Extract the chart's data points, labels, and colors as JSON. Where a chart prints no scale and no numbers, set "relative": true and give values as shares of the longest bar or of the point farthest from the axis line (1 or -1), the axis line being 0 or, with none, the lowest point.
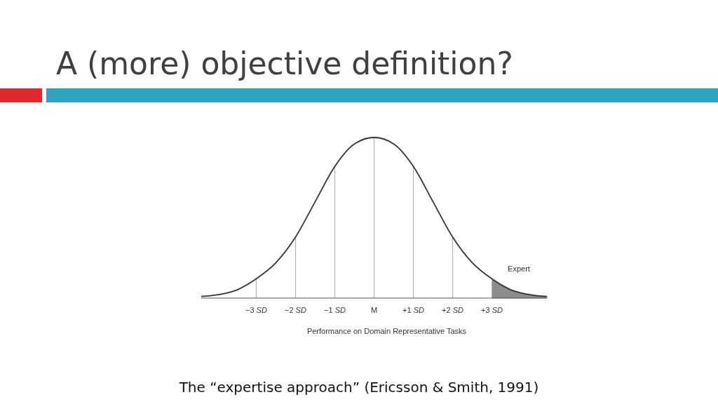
{
  "chart_data": {
    "type": "line",
    "title": "A (more) objective definition?",
    "xlabel": "Performance on Domain Representative Tasks",
    "relative": true,
    "tick_labels": "x",
    "grid": false,
    "line_style": "solid",
    "xlim": [
      -4.4,
      4.4
    ],
    "xticks": [
      {
        "value": -3,
        "label": "−3 SD"
      },
      {
        "value": -2,
        "label": "−2 SD"
      },
      {
        "value": -1,
        "label": "−1 SD"
      },
      {
        "value": 0,
        "label": "M"
      },
      {
        "value": 1,
        "label": "+1 SD"
      },
      {
        "value": 2,
        "label": "+2 SD"
      },
      {
        "value": 3,
        "label": "+3 SD"
      }
    ],
    "series": [
      {
        "color": "#333333",
        "x": [
          -4.4,
          -4,
          -3.5,
          -3,
          -2.5,
          -2,
          -1.5,
          -1,
          -0.5,
          0,
          0.5,
          1,
          1.5,
          2,
          2.5,
          3,
          3.5,
          4,
          4.4
        ],
        "values": [
          0.01,
          0.02,
          0.05,
          0.12,
          0.22,
          0.38,
          0.6,
          0.82,
          0.96,
          1,
          0.96,
          0.82,
          0.6,
          0.38,
          0.22,
          0.12,
          0.05,
          0.02,
          0.01
        ]
      },
      {
        "type": "area",
        "color": "#8c8c8c",
        "x": [
          3,
          3.5,
          4,
          4.4
        ],
        "values": [
          0.12,
          0.05,
          0.02,
          0.01
        ]
      }
    ],
    "ref_lines": [
      {
        "axis": "x",
        "value": -3
      },
      {
        "axis": "x",
        "value": -2
      },
      {
        "axis": "x",
        "value": -1
      },
      {
        "axis": "x",
        "value": 0
      },
      {
        "axis": "x",
        "value": 1
      },
      {
        "axis": "x",
        "value": 2
      },
      {
        "axis": "x",
        "value": 3
      }
    ],
    "annotations": [
      "Expert",
      "The “expertise approach” (Ericsson & Smith, 1991)"
    ]
  }
}
